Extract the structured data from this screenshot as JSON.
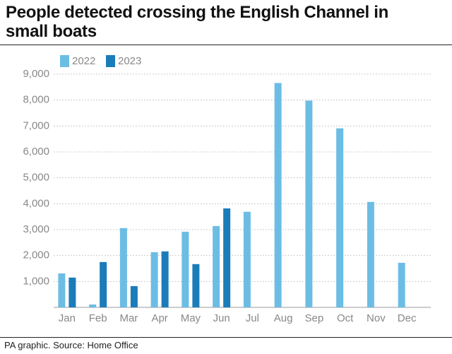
{
  "chart_data": {
    "type": "bar",
    "title": "People detected crossing the English Channel in small boats",
    "source": "PA graphic. Source: Home Office",
    "categories": [
      "Jan",
      "Feb",
      "Mar",
      "Apr",
      "May",
      "Jun",
      "Jul",
      "Aug",
      "Sep",
      "Oct",
      "Nov",
      "Dec"
    ],
    "series": [
      {
        "name": "2022",
        "color": "#6cbde4",
        "values": [
          1310,
          110,
          3060,
          2130,
          2920,
          3140,
          3690,
          8660,
          7980,
          6910,
          4070,
          1720
        ]
      },
      {
        "name": "2023",
        "color": "#1b7cba",
        "values": [
          1150,
          1750,
          820,
          2160,
          1670,
          3820,
          null,
          null,
          null,
          null,
          null,
          null
        ]
      }
    ],
    "ylim": [
      0,
      9000
    ],
    "yticks": [
      {
        "value": 1000,
        "label": "1,000"
      },
      {
        "value": 2000,
        "label": "2,000"
      },
      {
        "value": 3000,
        "label": "3,000"
      },
      {
        "value": 4000,
        "label": "4,000"
      },
      {
        "value": 5000,
        "label": "5,000"
      },
      {
        "value": 6000,
        "label": "6,000"
      },
      {
        "value": 7000,
        "label": "7,000"
      },
      {
        "value": 8000,
        "label": "8,000"
      },
      {
        "value": 9000,
        "label": "9,000"
      }
    ],
    "grid": true
  }
}
